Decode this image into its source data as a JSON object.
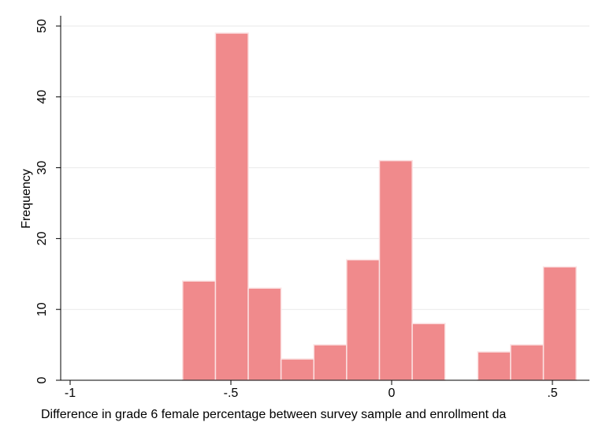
{
  "chart_data": {
    "type": "bar",
    "title": "",
    "xlabel": "Difference in grade 6 female percentage between survey sample and enrollment da",
    "ylabel": "Frequency",
    "xlim": [
      -1.03,
      0.62
    ],
    "ylim": [
      0,
      51.5
    ],
    "x_ticks": [
      {
        "value": -1,
        "label": "-1"
      },
      {
        "value": -0.5,
        "label": "-.5"
      },
      {
        "value": 0,
        "label": "0"
      },
      {
        "value": 0.5,
        "label": ".5"
      }
    ],
    "y_ticks": [
      {
        "value": 0,
        "label": "0"
      },
      {
        "value": 10,
        "label": "10"
      },
      {
        "value": 20,
        "label": "20"
      },
      {
        "value": 30,
        "label": "30"
      },
      {
        "value": 40,
        "label": "40"
      },
      {
        "value": 50,
        "label": "50"
      }
    ],
    "grid": true,
    "bar_color": "#f08a8c",
    "bar_edge_color": "#fbe0e1",
    "bars": [
      {
        "x0": -0.65,
        "x1": -0.548,
        "value": 14
      },
      {
        "x0": -0.548,
        "x1": -0.446,
        "value": 49
      },
      {
        "x0": -0.446,
        "x1": -0.344,
        "value": 13
      },
      {
        "x0": -0.344,
        "x1": -0.242,
        "value": 3
      },
      {
        "x0": -0.242,
        "x1": -0.14,
        "value": 5
      },
      {
        "x0": -0.14,
        "x1": -0.038,
        "value": 17
      },
      {
        "x0": -0.038,
        "x1": 0.064,
        "value": 31
      },
      {
        "x0": 0.064,
        "x1": 0.166,
        "value": 8
      },
      {
        "x0": 0.166,
        "x1": 0.268,
        "value": 0
      },
      {
        "x0": 0.268,
        "x1": 0.37,
        "value": 4
      },
      {
        "x0": 0.37,
        "x1": 0.472,
        "value": 5
      },
      {
        "x0": 0.472,
        "x1": 0.574,
        "value": 16
      }
    ]
  }
}
